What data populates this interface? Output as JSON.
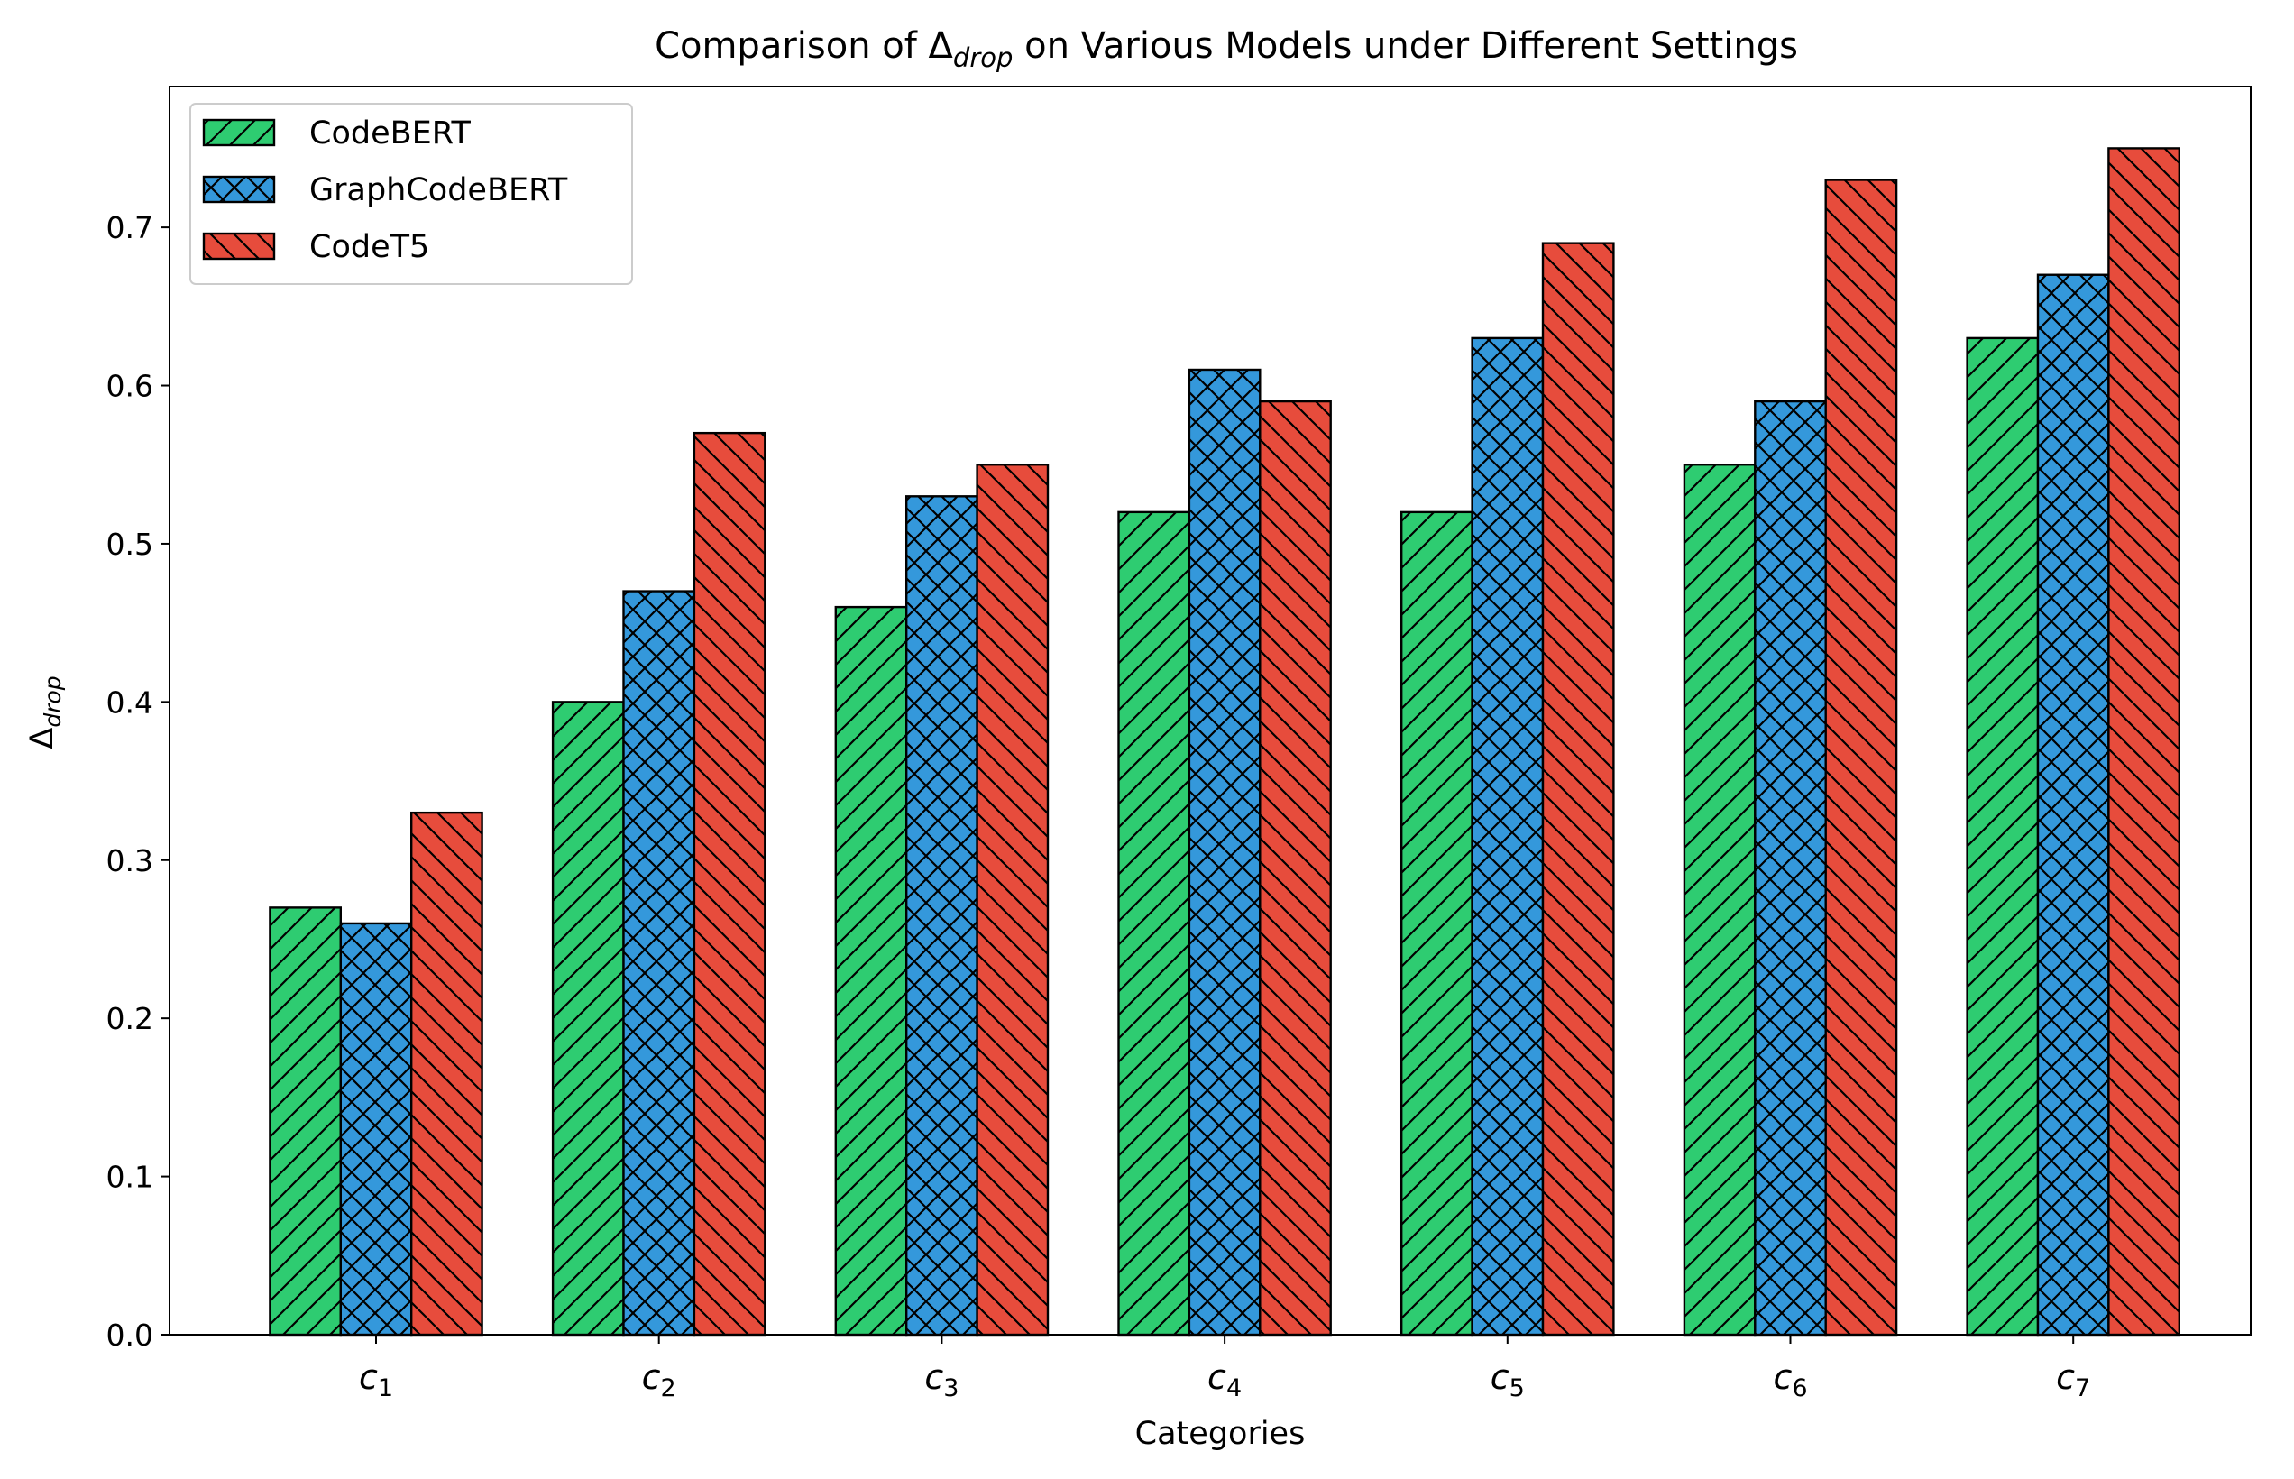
{
  "chart_data": {
    "type": "bar",
    "title": {
      "pre": "Comparison of Δ",
      "sub": "drop",
      "post": " on Various Models under Different Settings"
    },
    "xlabel": "Categories",
    "ylabel": {
      "main": "Δ",
      "sub": "drop"
    },
    "categories": [
      {
        "base": "c",
        "sub": "1"
      },
      {
        "base": "c",
        "sub": "2"
      },
      {
        "base": "c",
        "sub": "3"
      },
      {
        "base": "c",
        "sub": "4"
      },
      {
        "base": "c",
        "sub": "5"
      },
      {
        "base": "c",
        "sub": "6"
      },
      {
        "base": "c",
        "sub": "7"
      }
    ],
    "series": [
      {
        "name": "CodeBERT",
        "color": "#2ecc71",
        "hatch": "forward-diagonal",
        "values": [
          0.27,
          0.4,
          0.46,
          0.52,
          0.52,
          0.55,
          0.63
        ]
      },
      {
        "name": "GraphCodeBERT",
        "color": "#3498db",
        "hatch": "cross-diagonal",
        "values": [
          0.26,
          0.47,
          0.53,
          0.61,
          0.63,
          0.59,
          0.67
        ]
      },
      {
        "name": "CodeT5",
        "color": "#e74c3c",
        "hatch": "back-diagonal",
        "values": [
          0.33,
          0.57,
          0.55,
          0.59,
          0.69,
          0.73,
          0.75
        ]
      }
    ],
    "yticks": [
      "0.0",
      "0.1",
      "0.2",
      "0.3",
      "0.4",
      "0.5",
      "0.6",
      "0.7"
    ],
    "ylim": [
      0,
      0.789
    ],
    "grid": false,
    "legend_position": "top-left"
  }
}
